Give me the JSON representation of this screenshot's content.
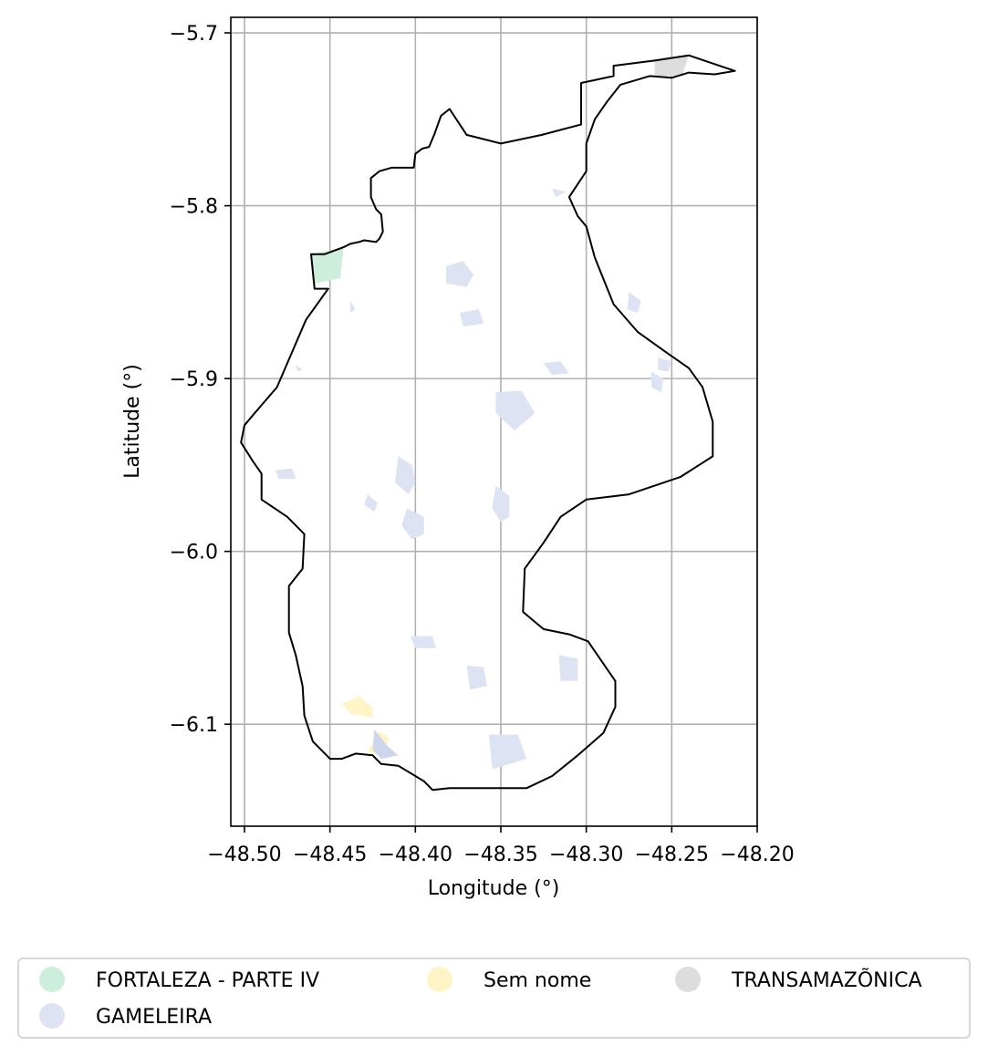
{
  "chart_data": {
    "type": "map",
    "xlabel": "Longitude (°)",
    "ylabel": "Latitude (°)",
    "xlim": [
      -48.508,
      -48.2
    ],
    "ylim": [
      -6.159,
      -5.691
    ],
    "xticks": [
      -48.5,
      -48.45,
      -48.4,
      -48.35,
      -48.3,
      -48.25,
      -48.2
    ],
    "xtick_labels": [
      "−48.50",
      "−48.45",
      "−48.40",
      "−48.35",
      "−48.30",
      "−48.25",
      "−48.20"
    ],
    "yticks": [
      -5.7,
      -5.8,
      -5.9,
      -6.0,
      -6.1
    ],
    "ytick_labels": [
      "−5.7",
      "−5.8",
      "−5.9",
      "−6.0",
      "−6.1"
    ],
    "grid": true,
    "legend_position": "bottom",
    "legend": [
      {
        "label": "FORTALEZA - PARTE IV",
        "color": "#cdeedd"
      },
      {
        "label": "GAMELEIRA",
        "color": "#dde3f2"
      },
      {
        "label": "Sem nome",
        "color": "#fff4c6"
      },
      {
        "label": "TRANSAMAZÕNICA",
        "color": "#dddddd"
      }
    ],
    "boundary": [
      [
        -48.453,
        -5.828
      ],
      [
        -48.442,
        -5.824
      ],
      [
        -48.438,
        -5.822
      ],
      [
        -48.433,
        -5.821
      ],
      [
        -48.43,
        -5.82
      ],
      [
        -48.423,
        -5.821
      ],
      [
        -48.421,
        -5.819
      ],
      [
        -48.419,
        -5.815
      ],
      [
        -48.42,
        -5.805
      ],
      [
        -48.423,
        -5.802
      ],
      [
        -48.426,
        -5.795
      ],
      [
        -48.426,
        -5.784
      ],
      [
        -48.421,
        -5.78
      ],
      [
        -48.414,
        -5.778
      ],
      [
        -48.401,
        -5.778
      ],
      [
        -48.4,
        -5.77
      ],
      [
        -48.396,
        -5.767
      ],
      [
        -48.392,
        -5.766
      ],
      [
        -48.389,
        -5.759
      ],
      [
        -48.385,
        -5.748
      ],
      [
        -48.38,
        -5.744
      ],
      [
        -48.37,
        -5.759
      ],
      [
        -48.35,
        -5.764
      ],
      [
        -48.326,
        -5.759
      ],
      [
        -48.303,
        -5.753
      ],
      [
        -48.303,
        -5.729
      ],
      [
        -48.284,
        -5.725
      ],
      [
        -48.284,
        -5.719
      ],
      [
        -48.26,
        -5.716
      ],
      [
        -48.24,
        -5.713
      ],
      [
        -48.213,
        -5.722
      ],
      [
        -48.225,
        -5.724
      ],
      [
        -48.24,
        -5.723
      ],
      [
        -48.25,
        -5.726
      ],
      [
        -48.263,
        -5.725
      ],
      [
        -48.28,
        -5.73
      ],
      [
        -48.288,
        -5.74
      ],
      [
        -48.295,
        -5.75
      ],
      [
        -48.3,
        -5.764
      ],
      [
        -48.3,
        -5.78
      ],
      [
        -48.31,
        -5.795
      ],
      [
        -48.305,
        -5.806
      ],
      [
        -48.3,
        -5.812
      ],
      [
        -48.295,
        -5.83
      ],
      [
        -48.284,
        -5.857
      ],
      [
        -48.27,
        -5.873
      ],
      [
        -48.253,
        -5.885
      ],
      [
        -48.24,
        -5.894
      ],
      [
        -48.232,
        -5.905
      ],
      [
        -48.226,
        -5.925
      ],
      [
        -48.226,
        -5.945
      ],
      [
        -48.245,
        -5.957
      ],
      [
        -48.275,
        -5.967
      ],
      [
        -48.3,
        -5.97
      ],
      [
        -48.315,
        -5.98
      ],
      [
        -48.325,
        -5.995
      ],
      [
        -48.336,
        -6.01
      ],
      [
        -48.337,
        -6.035
      ],
      [
        -48.325,
        -6.045
      ],
      [
        -48.31,
        -6.048
      ],
      [
        -48.299,
        -6.052
      ],
      [
        -48.29,
        -6.065
      ],
      [
        -48.283,
        -6.075
      ],
      [
        -48.283,
        -6.09
      ],
      [
        -48.29,
        -6.105
      ],
      [
        -48.305,
        -6.118
      ],
      [
        -48.32,
        -6.13
      ],
      [
        -48.335,
        -6.137
      ],
      [
        -48.36,
        -6.137
      ],
      [
        -48.38,
        -6.137
      ],
      [
        -48.39,
        -6.138
      ],
      [
        -48.395,
        -6.133
      ],
      [
        -48.4,
        -6.13
      ],
      [
        -48.41,
        -6.124
      ],
      [
        -48.42,
        -6.123
      ],
      [
        -48.425,
        -6.118
      ],
      [
        -48.435,
        -6.117
      ],
      [
        -48.443,
        -6.12
      ],
      [
        -48.45,
        -6.12
      ],
      [
        -48.46,
        -6.11
      ],
      [
        -48.465,
        -6.095
      ],
      [
        -48.466,
        -6.078
      ],
      [
        -48.47,
        -6.06
      ],
      [
        -48.474,
        -6.047
      ],
      [
        -48.474,
        -6.02
      ],
      [
        -48.466,
        -6.01
      ],
      [
        -48.465,
        -5.99
      ],
      [
        -48.475,
        -5.98
      ],
      [
        -48.49,
        -5.97
      ],
      [
        -48.49,
        -5.955
      ],
      [
        -48.495,
        -5.948
      ],
      [
        -48.502,
        -5.937
      ],
      [
        -48.5,
        -5.927
      ],
      [
        -48.494,
        -5.92
      ],
      [
        -48.481,
        -5.905
      ],
      [
        -48.464,
        -5.866
      ],
      [
        -48.451,
        -5.848
      ],
      [
        -48.459,
        -5.848
      ],
      [
        -48.461,
        -5.828
      ],
      [
        -48.453,
        -5.828
      ]
    ],
    "regions": [
      {
        "name": "FORTALEZA - PARTE IV",
        "color": "#cdeedd",
        "polygons": [
          [
            [
              -48.461,
              -5.828
            ],
            [
              -48.442,
              -5.824
            ],
            [
              -48.444,
              -5.842
            ],
            [
              -48.459,
              -5.845
            ]
          ]
        ]
      },
      {
        "name": "TRANSAMAZÕNICA",
        "color": "#dddddd",
        "polygons": [
          [
            [
              -48.26,
              -5.716
            ],
            [
              -48.24,
              -5.713
            ],
            [
              -48.244,
              -5.725
            ],
            [
              -48.26,
              -5.725
            ]
          ]
        ]
      },
      {
        "name": "Sem nome",
        "color": "#fff4c6",
        "polygons": [
          [
            [
              -48.443,
              -6.088
            ],
            [
              -48.433,
              -6.084
            ],
            [
              -48.425,
              -6.09
            ],
            [
              -48.425,
              -6.096
            ],
            [
              -48.438,
              -6.094
            ]
          ],
          [
            [
              -48.421,
              -6.104
            ],
            [
              -48.415,
              -6.108
            ],
            [
              -48.42,
              -6.118
            ],
            [
              -48.428,
              -6.116
            ]
          ]
        ]
      },
      {
        "name": "GAMELEIRA",
        "color": "#dde3f2",
        "polygons": [
          [
            [
              -48.382,
              -5.835
            ],
            [
              -48.372,
              -5.832
            ],
            [
              -48.366,
              -5.84
            ],
            [
              -48.37,
              -5.847
            ],
            [
              -48.382,
              -5.845
            ]
          ],
          [
            [
              -48.374,
              -5.862
            ],
            [
              -48.363,
              -5.86
            ],
            [
              -48.36,
              -5.868
            ],
            [
              -48.372,
              -5.87
            ]
          ],
          [
            [
              -48.353,
              -5.908
            ],
            [
              -48.338,
              -5.907
            ],
            [
              -48.33,
              -5.92
            ],
            [
              -48.342,
              -5.93
            ],
            [
              -48.353,
              -5.92
            ]
          ],
          [
            [
              -48.41,
              -5.945
            ],
            [
              -48.402,
              -5.95
            ],
            [
              -48.4,
              -5.96
            ],
            [
              -48.404,
              -5.967
            ],
            [
              -48.412,
              -5.96
            ]
          ],
          [
            [
              -48.405,
              -5.975
            ],
            [
              -48.395,
              -5.98
            ],
            [
              -48.395,
              -5.99
            ],
            [
              -48.402,
              -5.993
            ],
            [
              -48.408,
              -5.985
            ]
          ],
          [
            [
              -48.353,
              -5.962
            ],
            [
              -48.345,
              -5.968
            ],
            [
              -48.345,
              -5.98
            ],
            [
              -48.35,
              -5.983
            ],
            [
              -48.355,
              -5.975
            ]
          ],
          [
            [
              -48.482,
              -5.953
            ],
            [
              -48.472,
              -5.952
            ],
            [
              -48.47,
              -5.958
            ],
            [
              -48.48,
              -5.958
            ]
          ],
          [
            [
              -48.428,
              -5.967
            ],
            [
              -48.422,
              -5.972
            ],
            [
              -48.424,
              -5.977
            ],
            [
              -48.43,
              -5.973
            ]
          ],
          [
            [
              -48.325,
              -5.891
            ],
            [
              -48.315,
              -5.89
            ],
            [
              -48.31,
              -5.897
            ],
            [
              -48.32,
              -5.898
            ]
          ],
          [
            [
              -48.262,
              -5.896
            ],
            [
              -48.255,
              -5.9
            ],
            [
              -48.256,
              -5.908
            ],
            [
              -48.262,
              -5.905
            ]
          ],
          [
            [
              -48.258,
              -5.888
            ],
            [
              -48.25,
              -5.89
            ],
            [
              -48.252,
              -5.896
            ],
            [
              -48.258,
              -5.895
            ]
          ],
          [
            [
              -48.403,
              -6.049
            ],
            [
              -48.39,
              -6.049
            ],
            [
              -48.388,
              -6.056
            ],
            [
              -48.4,
              -6.056
            ]
          ],
          [
            [
              -48.37,
              -6.066
            ],
            [
              -48.36,
              -6.067
            ],
            [
              -48.358,
              -6.078
            ],
            [
              -48.368,
              -6.08
            ]
          ],
          [
            [
              -48.316,
              -6.06
            ],
            [
              -48.305,
              -6.062
            ],
            [
              -48.305,
              -6.075
            ],
            [
              -48.315,
              -6.075
            ]
          ],
          [
            [
              -48.357,
              -6.106
            ],
            [
              -48.34,
              -6.106
            ],
            [
              -48.335,
              -6.12
            ],
            [
              -48.355,
              -6.126
            ]
          ],
          [
            [
              -48.438,
              -5.855
            ],
            [
              -48.435,
              -5.86
            ],
            [
              -48.438,
              -5.862
            ]
          ],
          [
            [
              -48.47,
              -5.892
            ],
            [
              -48.466,
              -5.895
            ],
            [
              -48.469,
              -5.896
            ]
          ],
          [
            [
              -48.275,
              -5.85
            ],
            [
              -48.268,
              -5.855
            ],
            [
              -48.27,
              -5.862
            ],
            [
              -48.276,
              -5.86
            ]
          ],
          [
            [
              -48.32,
              -5.79
            ],
            [
              -48.312,
              -5.792
            ],
            [
              -48.318,
              -5.795
            ]
          ]
        ]
      },
      {
        "name": "",
        "color": "#cdd6ec",
        "polygons": [
          [
            [
              -48.424,
              -6.103
            ],
            [
              -48.416,
              -6.113
            ],
            [
              -48.41,
              -6.118
            ],
            [
              -48.42,
              -6.12
            ],
            [
              -48.425,
              -6.115
            ]
          ]
        ]
      }
    ]
  }
}
